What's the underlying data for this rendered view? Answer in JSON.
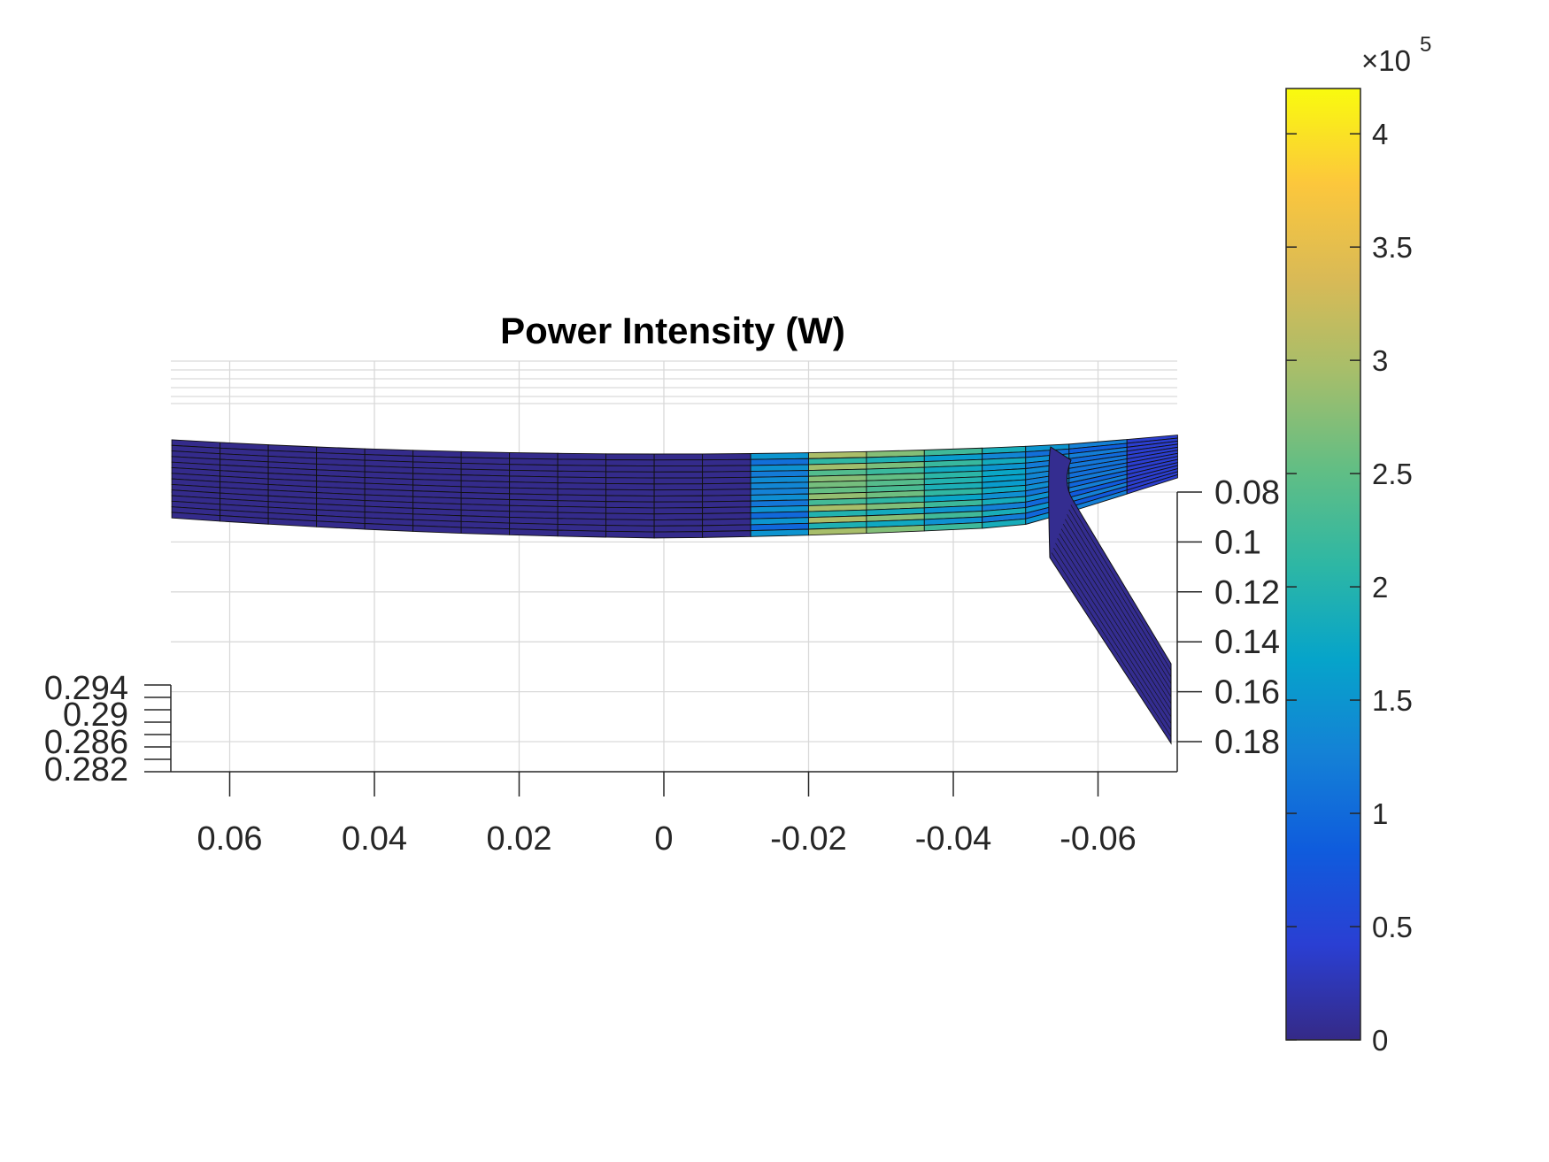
{
  "chart_data": {
    "type": "surface",
    "title": "Power Intensity (W)",
    "x_axis": {
      "ticks": [
        "0.06",
        "0.04",
        "0.02",
        "0",
        "-0.02",
        "-0.04",
        "-0.06"
      ],
      "values": [
        0.06,
        0.04,
        0.02,
        0,
        -0.02,
        -0.04,
        -0.06
      ],
      "direction": "reversed"
    },
    "y_axis": {
      "ticks": [
        "0.08",
        "0.1",
        "0.12",
        "0.14",
        "0.16",
        "0.18"
      ],
      "values": [
        0.08,
        0.1,
        0.12,
        0.14,
        0.16,
        0.18
      ]
    },
    "z_axis": {
      "ticks": [
        "0.294",
        "0.29",
        "0.286",
        "0.282"
      ],
      "values": [
        0.294,
        0.29,
        0.286,
        0.282
      ]
    },
    "grid": true,
    "colorbar": {
      "colormap": "parula",
      "range": [
        0,
        420000
      ],
      "ticks": [
        "0",
        "0.5",
        "1",
        "1.5",
        "2",
        "2.5",
        "3",
        "3.5",
        "4"
      ],
      "tick_values": [
        0,
        0.5,
        1,
        1.5,
        2,
        2.5,
        3,
        3.5,
        4
      ],
      "multiplier_base": "×10",
      "multiplier_exponent": "5",
      "position": "right"
    },
    "surfaces": [
      {
        "name": "curved-band",
        "x_range": [
          0.068,
          -0.071
        ],
        "panels": [
          {
            "x_from": 0.068,
            "x_to": -0.012,
            "level": 0.02
          },
          {
            "x_from": -0.012,
            "x_to": -0.02,
            "level": 1.2
          },
          {
            "x_from": -0.02,
            "x_to": -0.028,
            "level": 2.4
          },
          {
            "x_from": -0.028,
            "x_to": -0.036,
            "level": 2.2
          },
          {
            "x_from": -0.036,
            "x_to": -0.044,
            "level": 1.8
          },
          {
            "x_from": -0.044,
            "x_to": -0.05,
            "level": 1.5
          },
          {
            "x_from": -0.05,
            "x_to": -0.056,
            "level": 1.2
          },
          {
            "x_from": -0.056,
            "x_to": -0.064,
            "level": 1.0
          },
          {
            "x_from": -0.064,
            "x_to": -0.071,
            "level": 0.4
          }
        ]
      },
      {
        "name": "inclined-plate",
        "x_range": [
          -0.053,
          -0.07
        ],
        "level": 0.05
      }
    ]
  }
}
